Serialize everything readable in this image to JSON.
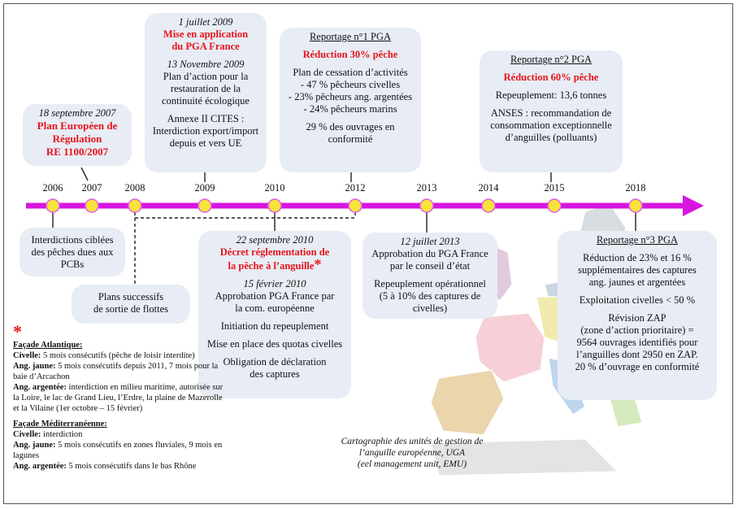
{
  "timeline_years": [
    "2006",
    "2007",
    "2008",
    "2009",
    "2010",
    "2012",
    "2013",
    "2014",
    "2015",
    "2018"
  ],
  "colors": {
    "line": "#d716e0",
    "dot": "#f8e33a",
    "dot_stroke": "#e05ce8",
    "box_bg": "#e7ecf5",
    "highlight": "#e8141a"
  },
  "box_2007": {
    "date": "18 septembre 2007",
    "title": "Plan Européen de Régulation\nRE 1100/2007"
  },
  "box_2009": {
    "date1": "1 juillet 2009",
    "title1": "Mise en application\ndu PGA France",
    "date2": "13 Novembre 2009",
    "text1": "Plan d’action pour la\nrestauration de la\ncontinuité écologique",
    "text2": "Annexe II CITES :\nInterdiction export/import\ndepuis et vers UE"
  },
  "box_2012": {
    "title": "Reportage n°1 PGA",
    "highlight": "Réduction 30% pêche",
    "text1": "Plan de cessation d’activités\n- 47 % pêcheurs civelles\n- 23% pêcheurs ang. argentées\n- 24% pêcheurs marins",
    "text2": "29 % des ouvrages en\nconformité"
  },
  "box_2015": {
    "title": "Reportage n°2 PGA",
    "highlight": "Réduction 60% pêche",
    "text1": "Repeuplement: 13,6 tonnes",
    "text2": "ANSES : recommandation de\nconsommation exceptionnelle\nd’anguilles (polluants)"
  },
  "box_2006": {
    "text": "Interdictions ciblées\ndes pêches dues aux\nPCBs"
  },
  "box_2008": {
    "text": "Plans successifs\nde sortie de flottes"
  },
  "box_2010": {
    "date1": "22 septembre 2010",
    "title": "Décret réglementation de\nla pêche à l’anguille",
    "star": "*",
    "date2": "15 février 2010",
    "text1": "Approbation PGA France par\nla com. européenne",
    "text2": "Initiation du repeuplement",
    "text3": "Mise en place des quotas civelles",
    "text4": "Obligation de déclaration\ndes captures"
  },
  "box_2013": {
    "date": "12 juillet 2013",
    "text1": "Approbation du PGA France\npar le conseil d’état",
    "text2": "Repeuplement opérationnel\n(5 à 10% des captures de\ncivelles)"
  },
  "box_2018": {
    "title": "Reportage n°3 PGA",
    "text1": "Réduction de 23% et 16 %\nsupplémentaires des captures\nang. jaunes et argentées",
    "text2": "Exploitation civelles < 50 %",
    "text3": "Révision ZAP\n(zone d’action prioritaire) =\n9564 ouvrages identifiés pour\nl’anguilles dont 2950 en ZAP.\n20 % d’ouvrage  en conformité"
  },
  "legend": {
    "star": "*",
    "atl_title": "Façade Atlantique:",
    "civ_label": "Civelle:",
    "civ_text": " 5 mois consécutifs (pêche de loisir interdite)",
    "jaune_label": "Ang. jaune:",
    "jaune_text": " 5 mois consécutifs depuis 2011, 7 mois pour la baie d’Arcachon",
    "arg_label": "Ang. argentée:",
    "arg_text": " interdiction en milieu maritime, autorisée sur la Loire, le lac de Grand Lieu, l’Erdre, la plaine de Mazerolle et la Vilaine (1er octobre – 15 février)",
    "med_title": "Façade Méditerranéenne:",
    "med_civ_label": "Civelle:",
    "med_civ_text": " interdiction",
    "med_jaune_label": "Ang. jaune:",
    "med_jaune_text": " 5 mois consécutifs en zones fluviales, 9 mois en lagunes",
    "med_arg_label": "Ang. argentée:",
    "med_arg_text": " 5 mois consécutifs dans le bas Rhône"
  },
  "map_caption": "Cartographie des unités de gestion de\nl’anguille européenne, UGA\n(eel management unit, EMU)"
}
